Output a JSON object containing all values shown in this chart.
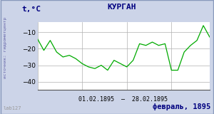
{
  "title": "КУРГАН",
  "ylabel": "t,°C",
  "xlabel_range": "01.02.1895  –  28.02.1895",
  "footer_left": "lab127",
  "footer_right": "февраль, 1895",
  "watermark": "источник: гидрометцентр",
  "ylim": [
    -45,
    -4
  ],
  "yticks": [
    -40,
    -30,
    -20,
    -10
  ],
  "bg_color": "#ccd4e8",
  "plot_bg": "#ffffff",
  "line_color": "#00aa00",
  "title_color": "#000080",
  "footer_color": "#000080",
  "watermark_color": "#6666aa",
  "label_color": "#000080",
  "days": [
    1,
    2,
    3,
    4,
    5,
    6,
    7,
    8,
    9,
    10,
    11,
    12,
    13,
    14,
    15,
    16,
    17,
    18,
    19,
    20,
    21,
    22,
    23,
    24,
    25,
    26,
    27,
    28
  ],
  "temps": [
    -14,
    -21,
    -15,
    -22,
    -25,
    -24,
    -26,
    -29,
    -31,
    -32,
    -30,
    -33,
    -27,
    -29,
    -31,
    -27,
    -17,
    -18,
    -16,
    -18,
    -17,
    -33,
    -33,
    -22,
    -18,
    -15,
    -6,
    -13
  ]
}
